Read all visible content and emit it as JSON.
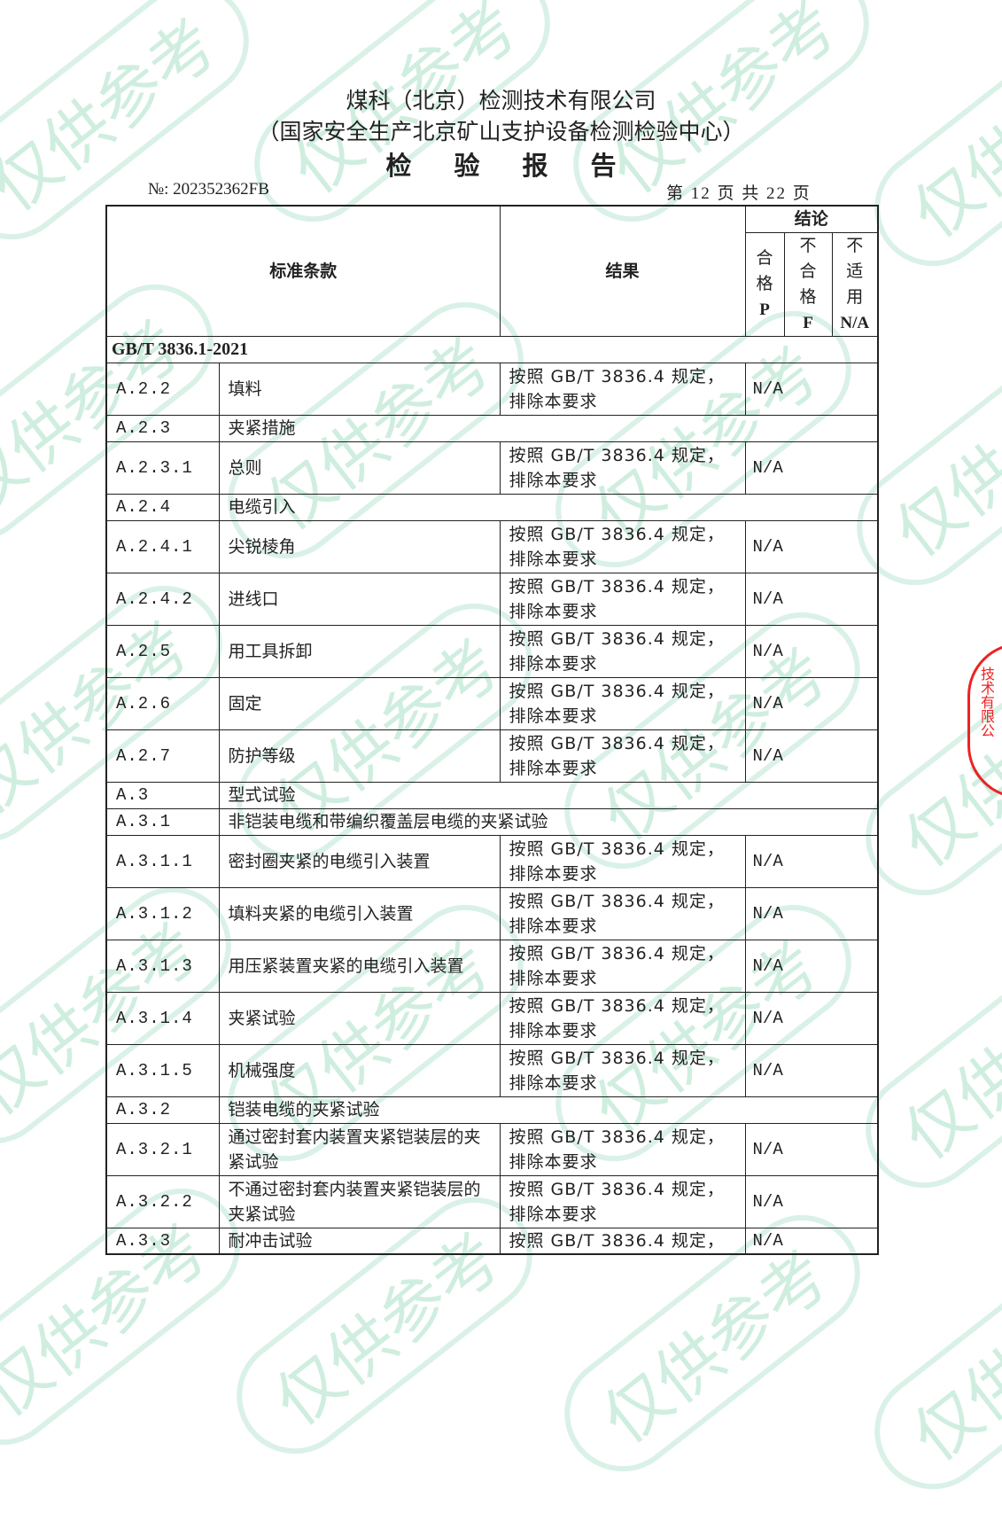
{
  "watermark": "仅供参考",
  "header": {
    "company": "煤科（北京）检测技术有限公司",
    "center": "（国家安全生产北京矿山支护设备检测检验中心）",
    "doc_title": "检验报告",
    "report_no": "№: 202352362FB",
    "page_info": "第 12 页 共 22 页"
  },
  "table": {
    "col_clause": "标准条款",
    "col_result": "结果",
    "col_conclusion": "结论",
    "col_pass": "合格",
    "col_pass_code": "P",
    "col_fail": "不合格",
    "col_fail_code": "F",
    "col_na": "不适用",
    "col_na_code": "N/A",
    "standard": "GB/T 3836.1-2021",
    "rows": [
      {
        "code": "A.2.2",
        "name": "填料",
        "result": "按照 GB/T 3836.4 规定，排除本要求",
        "pass": "N/A"
      },
      {
        "code": "A.2.3",
        "name": "夹紧措施"
      },
      {
        "code": "A.2.3.1",
        "name": "总则",
        "result": "按照 GB/T 3836.4 规定，排除本要求",
        "pass": "N/A"
      },
      {
        "code": "A.2.4",
        "name": "电缆引入"
      },
      {
        "code": "A.2.4.1",
        "name": "尖锐棱角",
        "result": "按照 GB/T 3836.4 规定，排除本要求",
        "pass": "N/A"
      },
      {
        "code": "A.2.4.2",
        "name": "进线口",
        "result": "按照 GB/T 3836.4 规定，排除本要求",
        "pass": "N/A"
      },
      {
        "code": "A.2.5",
        "name": "用工具拆卸",
        "result": "按照 GB/T 3836.4 规定，排除本要求",
        "pass": "N/A"
      },
      {
        "code": "A.2.6",
        "name": "固定",
        "result": "按照 GB/T 3836.4 规定，排除本要求",
        "pass": "N/A"
      },
      {
        "code": "A.2.7",
        "name": "防护等级",
        "result": "按照 GB/T 3836.4 规定，排除本要求",
        "pass": "N/A"
      },
      {
        "code": "A.3",
        "name": "型式试验"
      },
      {
        "code": "A.3.1",
        "name": "非铠装电缆和带编织覆盖层电缆的夹紧试验"
      },
      {
        "code": "A.3.1.1",
        "name": "密封圈夹紧的电缆引入装置",
        "result": "按照 GB/T 3836.4 规定，排除本要求",
        "pass": "N/A"
      },
      {
        "code": "A.3.1.2",
        "name": "填料夹紧的电缆引入装置",
        "result": "按照 GB/T 3836.4 规定，排除本要求",
        "pass": "N/A"
      },
      {
        "code": "A.3.1.3",
        "name": "用压紧装置夹紧的电缆引入装置",
        "result": "按照 GB/T 3836.4 规定，排除本要求",
        "pass": "N/A"
      },
      {
        "code": "A.3.1.4",
        "name": "夹紧试验",
        "result": "按照 GB/T 3836.4 规定，排除本要求",
        "pass": "N/A"
      },
      {
        "code": "A.3.1.5",
        "name": "机械强度",
        "result": "按照 GB/T 3836.4 规定，排除本要求",
        "pass": "N/A"
      },
      {
        "code": "A.3.2",
        "name": "铠装电缆的夹紧试验"
      },
      {
        "code": "A.3.2.1",
        "name": "通过密封套内装置夹紧铠装层的夹紧试验",
        "result": "按照 GB/T 3836.4 规定，排除本要求",
        "pass": "N/A"
      },
      {
        "code": "A.3.2.2",
        "name": "不通过密封套内装置夹紧铠装层的夹紧试验",
        "result": "按照 GB/T 3836.4 规定，排除本要求",
        "pass": "N/A"
      },
      {
        "code": "A.3.3",
        "name": "耐冲击试验",
        "result": "按照 GB/T 3836.4 规定，",
        "pass": "N/A",
        "cut": true
      }
    ]
  },
  "seal": {
    "text": "技术有限公"
  },
  "colors": {
    "watermark": "#78cda5",
    "seal": "#e22222"
  }
}
